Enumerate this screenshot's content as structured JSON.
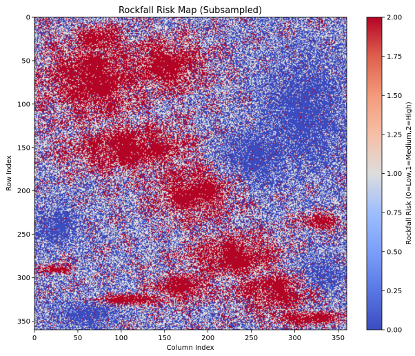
{
  "chart_data": {
    "type": "heatmap",
    "title": "Rockfall Risk Map (Subsampled)",
    "xlabel": "Column Index",
    "ylabel": "Row Index",
    "xlim": [
      0,
      360
    ],
    "ylim": [
      360,
      0
    ],
    "xticks": [
      "0",
      "50",
      "100",
      "150",
      "200",
      "250",
      "300",
      "350"
    ],
    "yticks": [
      "0",
      "50",
      "100",
      "150",
      "200",
      "250",
      "300",
      "350"
    ],
    "colormap": "coolwarm",
    "colors": {
      "low": "#3b4cc0",
      "mid": "#dddddd",
      "high": "#b40426"
    },
    "value_range": [
      0.0,
      2.0
    ],
    "colorbar": {
      "label": "Rockfall Risk (0=Low,1=Medium,2=High)",
      "ticks": [
        "0.00",
        "0.25",
        "0.50",
        "0.75",
        "1.00",
        "1.25",
        "1.50",
        "1.75",
        "2.00"
      ]
    },
    "high_risk_regions": [
      {
        "cx": 70,
        "cy": 70,
        "rx": 70,
        "ry": 55
      },
      {
        "cx": 150,
        "cy": 55,
        "rx": 55,
        "ry": 35
      },
      {
        "cx": 110,
        "cy": 150,
        "rx": 85,
        "ry": 32
      },
      {
        "cx": 185,
        "cy": 200,
        "rx": 55,
        "ry": 38
      },
      {
        "cx": 230,
        "cy": 275,
        "rx": 60,
        "ry": 30
      },
      {
        "cx": 280,
        "cy": 315,
        "rx": 60,
        "ry": 25
      },
      {
        "cx": 75,
        "cy": 27,
        "rx": 35,
        "ry": 22
      },
      {
        "cx": 170,
        "cy": 310,
        "rx": 40,
        "ry": 18
      },
      {
        "cx": 110,
        "cy": 325,
        "rx": 65,
        "ry": 8
      },
      {
        "cx": 330,
        "cy": 235,
        "rx": 30,
        "ry": 10
      },
      {
        "cx": 310,
        "cy": 345,
        "rx": 55,
        "ry": 10
      },
      {
        "cx": 25,
        "cy": 290,
        "rx": 20,
        "ry": 6
      }
    ],
    "low_risk_regions": [
      {
        "cx": 25,
        "cy": 240,
        "rx": 30,
        "ry": 28
      },
      {
        "cx": 310,
        "cy": 110,
        "rx": 60,
        "ry": 80
      },
      {
        "cx": 255,
        "cy": 160,
        "rx": 55,
        "ry": 45
      },
      {
        "cx": 60,
        "cy": 340,
        "rx": 45,
        "ry": 22
      },
      {
        "cx": 330,
        "cy": 300,
        "rx": 35,
        "ry": 30
      }
    ]
  }
}
